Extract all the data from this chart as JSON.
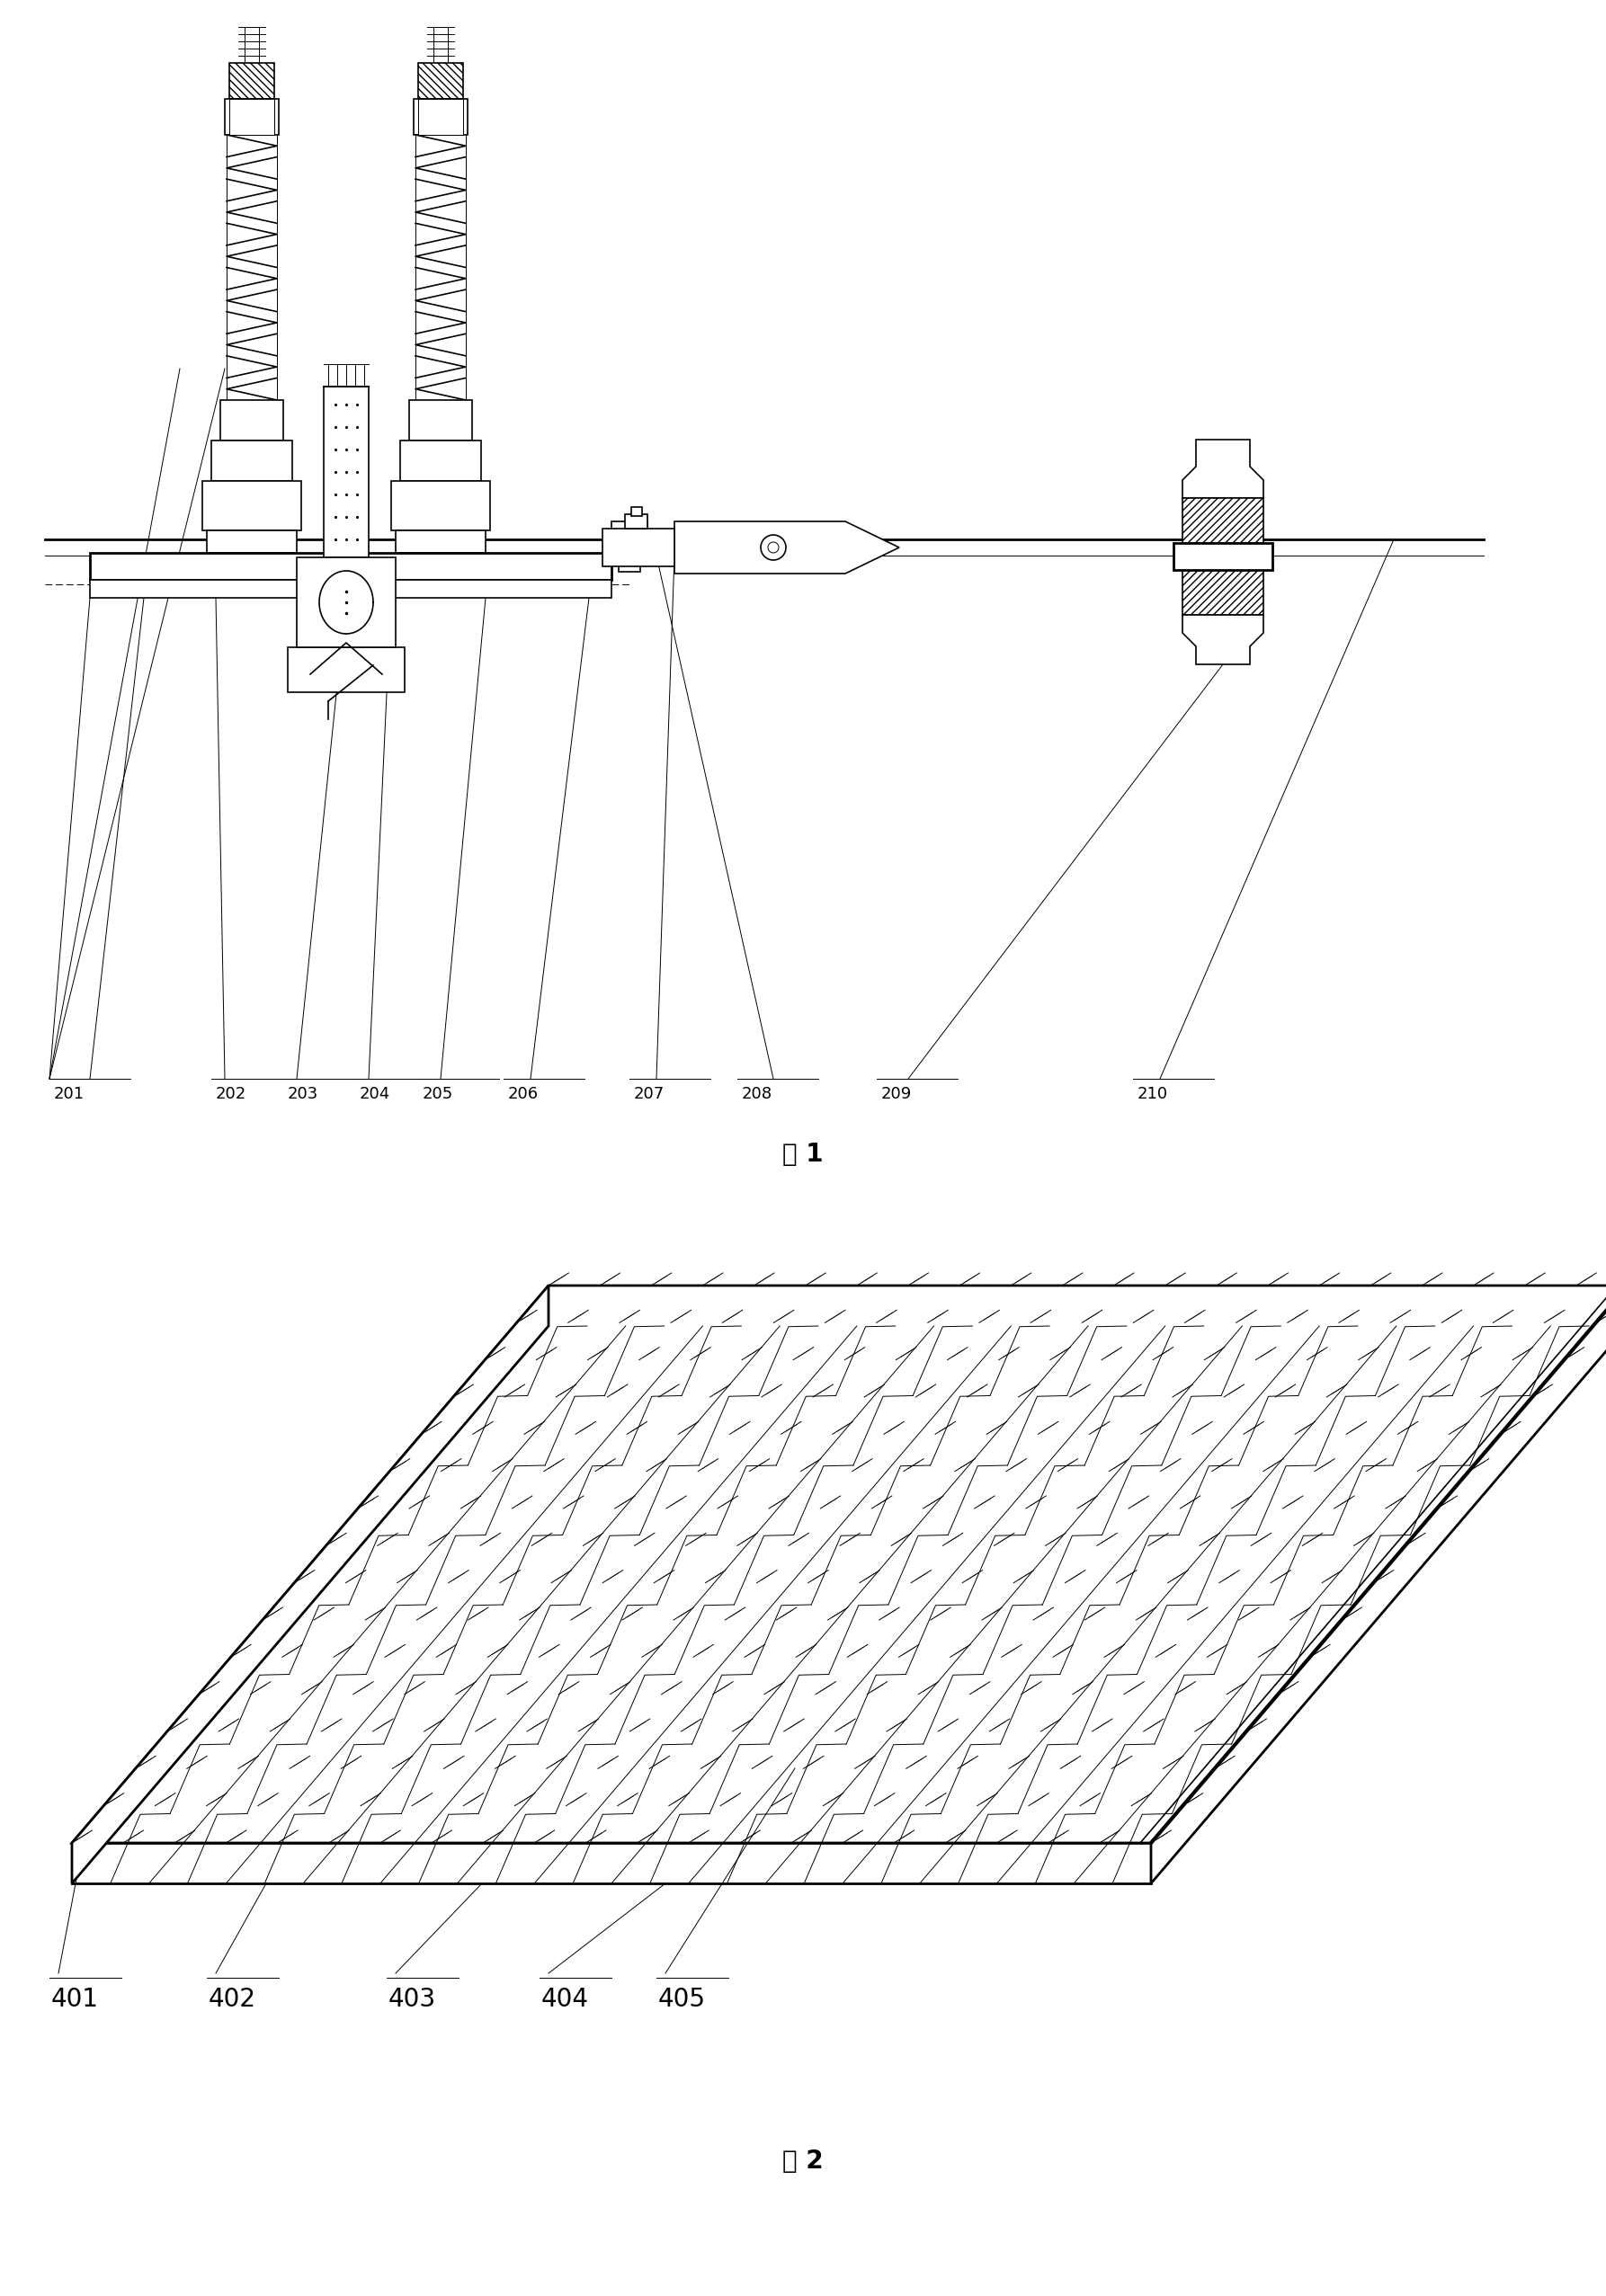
{
  "fig_width": 17.86,
  "fig_height": 25.54,
  "bg_color": "#ffffff",
  "line_color": "#000000",
  "fig1_labels": [
    "201",
    "202",
    "203",
    "204",
    "205",
    "206",
    "207",
    "208",
    "209",
    "210"
  ],
  "fig1_title": "图 1",
  "fig2_labels": [
    "401",
    "402",
    "403",
    "404",
    "405"
  ],
  "fig2_title": "图 2"
}
